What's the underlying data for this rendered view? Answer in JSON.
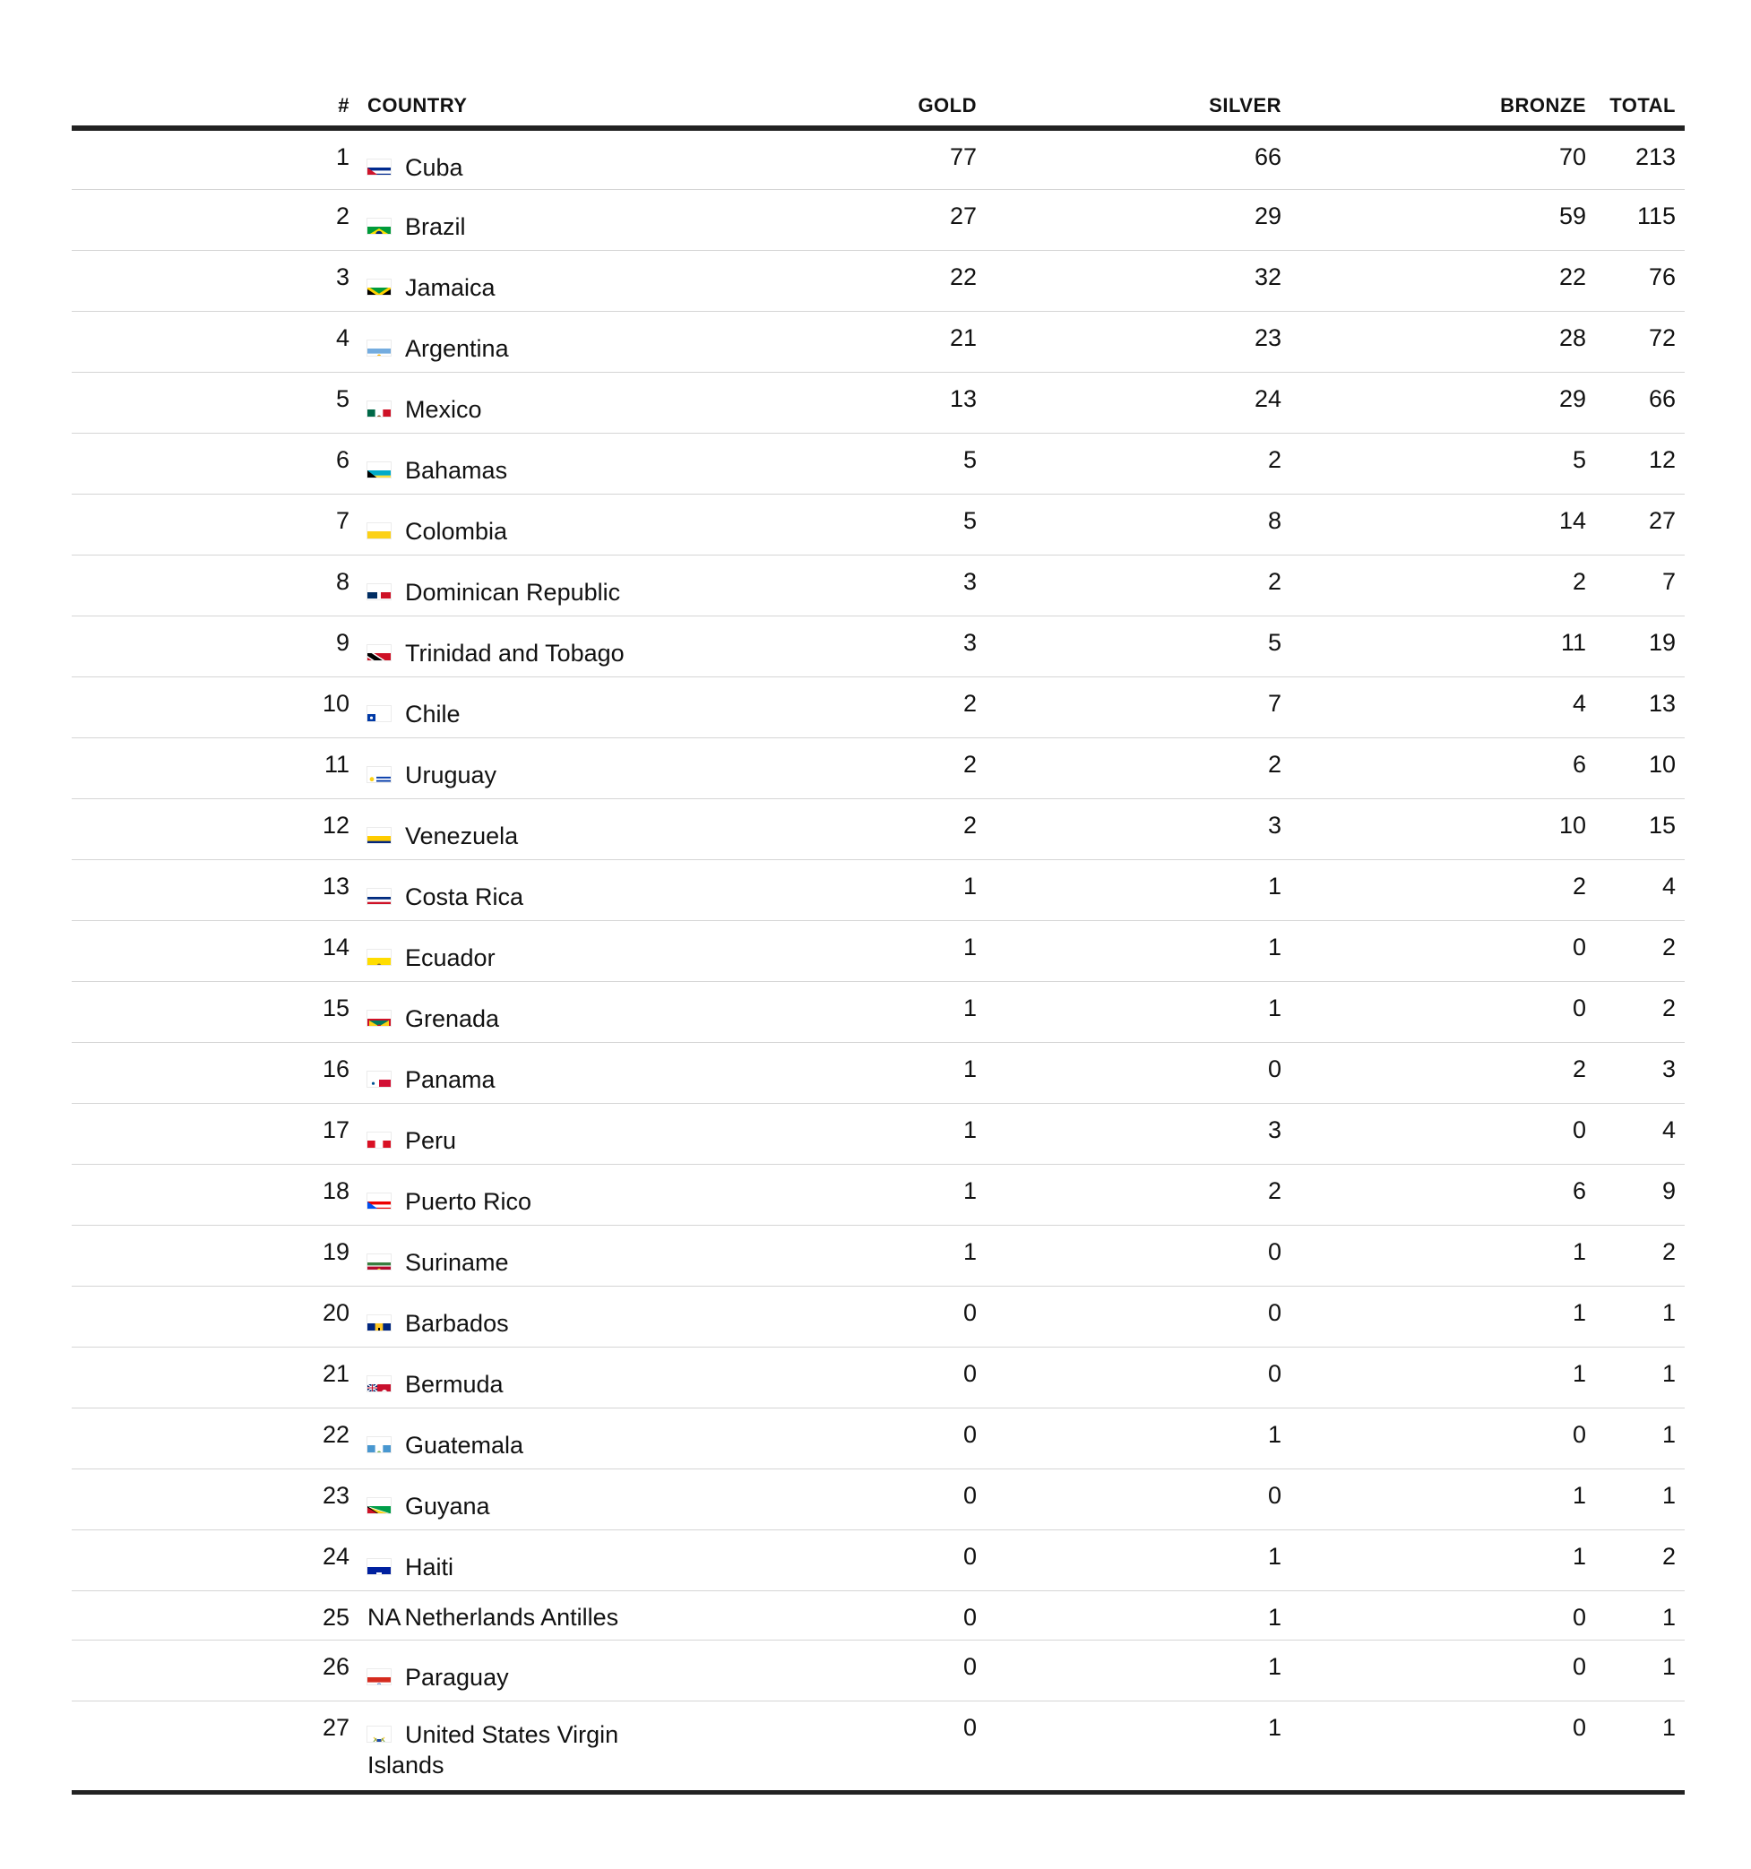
{
  "table": {
    "headers": {
      "rank": "#",
      "country": "COUNTRY",
      "gold": "GOLD",
      "silver": "SILVER",
      "bronze": "BRONZE",
      "total": "TOTAL"
    },
    "rows": [
      {
        "rank": "1",
        "country": "Cuba",
        "flag": "cuba-flag-icon",
        "gold": "77",
        "silver": "66",
        "bronze": "70",
        "total": "213"
      },
      {
        "rank": "2",
        "country": "Brazil",
        "flag": "brazil-flag-icon",
        "gold": "27",
        "silver": "29",
        "bronze": "59",
        "total": "115"
      },
      {
        "rank": "3",
        "country": "Jamaica",
        "flag": "jamaica-flag-icon",
        "gold": "22",
        "silver": "32",
        "bronze": "22",
        "total": "76"
      },
      {
        "rank": "4",
        "country": "Argentina",
        "flag": "argentina-flag-icon",
        "gold": "21",
        "silver": "23",
        "bronze": "28",
        "total": "72"
      },
      {
        "rank": "5",
        "country": "Mexico",
        "flag": "mexico-flag-icon",
        "gold": "13",
        "silver": "24",
        "bronze": "29",
        "total": "66"
      },
      {
        "rank": "6",
        "country": "Bahamas",
        "flag": "bahamas-flag-icon",
        "gold": "5",
        "silver": "2",
        "bronze": "5",
        "total": "12"
      },
      {
        "rank": "7",
        "country": "Colombia",
        "flag": "colombia-flag-icon",
        "gold": "5",
        "silver": "8",
        "bronze": "14",
        "total": "27"
      },
      {
        "rank": "8",
        "country": "Dominican Republic",
        "flag": "dominican-republic-flag-icon",
        "gold": "3",
        "silver": "2",
        "bronze": "2",
        "total": "7"
      },
      {
        "rank": "9",
        "country": "Trinidad and Tobago",
        "flag": "trinidad-and-tobago-flag-icon",
        "gold": "3",
        "silver": "5",
        "bronze": "11",
        "total": "19"
      },
      {
        "rank": "10",
        "country": "Chile",
        "flag": "chile-flag-icon",
        "gold": "2",
        "silver": "7",
        "bronze": "4",
        "total": "13"
      },
      {
        "rank": "11",
        "country": "Uruguay",
        "flag": "uruguay-flag-icon",
        "gold": "2",
        "silver": "2",
        "bronze": "6",
        "total": "10"
      },
      {
        "rank": "12",
        "country": "Venezuela",
        "flag": "venezuela-flag-icon",
        "gold": "2",
        "silver": "3",
        "bronze": "10",
        "total": "15"
      },
      {
        "rank": "13",
        "country": "Costa Rica",
        "flag": "costa-rica-flag-icon",
        "gold": "1",
        "silver": "1",
        "bronze": "2",
        "total": "4"
      },
      {
        "rank": "14",
        "country": "Ecuador",
        "flag": "ecuador-flag-icon",
        "gold": "1",
        "silver": "1",
        "bronze": "0",
        "total": "2"
      },
      {
        "rank": "15",
        "country": "Grenada",
        "flag": "grenada-flag-icon",
        "gold": "1",
        "silver": "1",
        "bronze": "0",
        "total": "2"
      },
      {
        "rank": "16",
        "country": "Panama",
        "flag": "panama-flag-icon",
        "gold": "1",
        "silver": "0",
        "bronze": "2",
        "total": "3"
      },
      {
        "rank": "17",
        "country": "Peru",
        "flag": "peru-flag-icon",
        "gold": "1",
        "silver": "3",
        "bronze": "0",
        "total": "4"
      },
      {
        "rank": "18",
        "country": "Puerto Rico",
        "flag": "puerto-rico-flag-icon",
        "gold": "1",
        "silver": "2",
        "bronze": "6",
        "total": "9"
      },
      {
        "rank": "19",
        "country": "Suriname",
        "flag": "suriname-flag-icon",
        "gold": "1",
        "silver": "0",
        "bronze": "1",
        "total": "2"
      },
      {
        "rank": "20",
        "country": "Barbados",
        "flag": "barbados-flag-icon",
        "gold": "0",
        "silver": "0",
        "bronze": "1",
        "total": "1"
      },
      {
        "rank": "21",
        "country": "Bermuda",
        "flag": "bermuda-flag-icon",
        "gold": "0",
        "silver": "0",
        "bronze": "1",
        "total": "1"
      },
      {
        "rank": "22",
        "country": "Guatemala",
        "flag": "guatemala-flag-icon",
        "gold": "0",
        "silver": "1",
        "bronze": "0",
        "total": "1"
      },
      {
        "rank": "23",
        "country": "Guyana",
        "flag": "guyana-flag-icon",
        "gold": "0",
        "silver": "0",
        "bronze": "1",
        "total": "1"
      },
      {
        "rank": "24",
        "country": "Haiti",
        "flag": "haiti-flag-icon",
        "gold": "0",
        "silver": "1",
        "bronze": "1",
        "total": "2"
      },
      {
        "rank": "25",
        "country": "Netherlands Antilles",
        "flag_code": "NA",
        "gold": "0",
        "silver": "1",
        "bronze": "0",
        "total": "1"
      },
      {
        "rank": "26",
        "country": "Paraguay",
        "flag": "paraguay-flag-icon",
        "gold": "0",
        "silver": "1",
        "bronze": "0",
        "total": "1"
      },
      {
        "rank": "27",
        "country": "United States Virgin Islands",
        "flag": "us-virgin-islands-flag-icon",
        "gold": "0",
        "silver": "1",
        "bronze": "0",
        "total": "1"
      }
    ]
  }
}
